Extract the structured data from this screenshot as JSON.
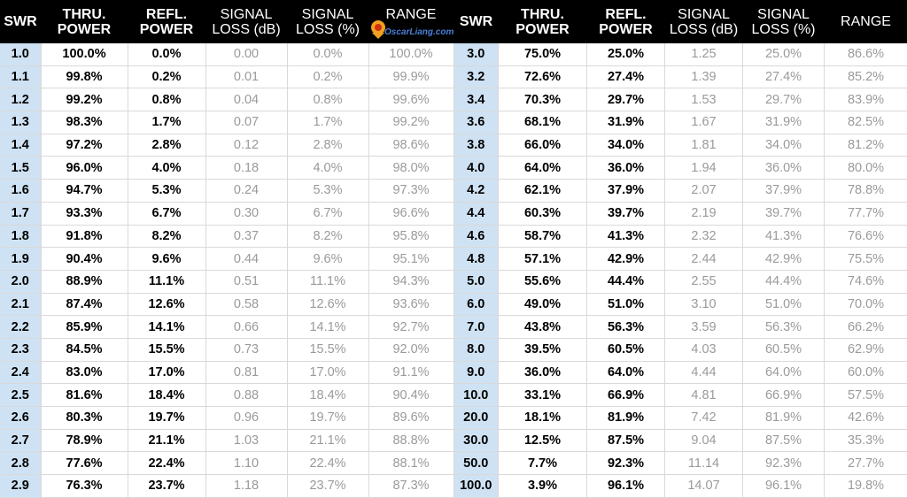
{
  "headers": {
    "swr": "SWR",
    "thru_1": "THRU.",
    "thru_2": "POWER",
    "refl_1": "REFL.",
    "refl_2": "POWER",
    "sigdb_1": "SIGNAL",
    "sigdb_2": "LOSS (dB)",
    "sigpct_1": "SIGNAL",
    "sigpct_2": "LOSS (%)",
    "range": "RANGE"
  },
  "logo_text": "OscarLiang.com",
  "left_rows": [
    [
      "1.0",
      "100.0%",
      "0.0%",
      "0.00",
      "0.0%",
      "100.0%"
    ],
    [
      "1.1",
      "99.8%",
      "0.2%",
      "0.01",
      "0.2%",
      "99.9%"
    ],
    [
      "1.2",
      "99.2%",
      "0.8%",
      "0.04",
      "0.8%",
      "99.6%"
    ],
    [
      "1.3",
      "98.3%",
      "1.7%",
      "0.07",
      "1.7%",
      "99.2%"
    ],
    [
      "1.4",
      "97.2%",
      "2.8%",
      "0.12",
      "2.8%",
      "98.6%"
    ],
    [
      "1.5",
      "96.0%",
      "4.0%",
      "0.18",
      "4.0%",
      "98.0%"
    ],
    [
      "1.6",
      "94.7%",
      "5.3%",
      "0.24",
      "5.3%",
      "97.3%"
    ],
    [
      "1.7",
      "93.3%",
      "6.7%",
      "0.30",
      "6.7%",
      "96.6%"
    ],
    [
      "1.8",
      "91.8%",
      "8.2%",
      "0.37",
      "8.2%",
      "95.8%"
    ],
    [
      "1.9",
      "90.4%",
      "9.6%",
      "0.44",
      "9.6%",
      "95.1%"
    ],
    [
      "2.0",
      "88.9%",
      "11.1%",
      "0.51",
      "11.1%",
      "94.3%"
    ],
    [
      "2.1",
      "87.4%",
      "12.6%",
      "0.58",
      "12.6%",
      "93.6%"
    ],
    [
      "2.2",
      "85.9%",
      "14.1%",
      "0.66",
      "14.1%",
      "92.7%"
    ],
    [
      "2.3",
      "84.5%",
      "15.5%",
      "0.73",
      "15.5%",
      "92.0%"
    ],
    [
      "2.4",
      "83.0%",
      "17.0%",
      "0.81",
      "17.0%",
      "91.1%"
    ],
    [
      "2.5",
      "81.6%",
      "18.4%",
      "0.88",
      "18.4%",
      "90.4%"
    ],
    [
      "2.6",
      "80.3%",
      "19.7%",
      "0.96",
      "19.7%",
      "89.6%"
    ],
    [
      "2.7",
      "78.9%",
      "21.1%",
      "1.03",
      "21.1%",
      "88.8%"
    ],
    [
      "2.8",
      "77.6%",
      "22.4%",
      "1.10",
      "22.4%",
      "88.1%"
    ],
    [
      "2.9",
      "76.3%",
      "23.7%",
      "1.18",
      "23.7%",
      "87.3%"
    ]
  ],
  "right_rows": [
    [
      "3.0",
      "75.0%",
      "25.0%",
      "1.25",
      "25.0%",
      "86.6%"
    ],
    [
      "3.2",
      "72.6%",
      "27.4%",
      "1.39",
      "27.4%",
      "85.2%"
    ],
    [
      "3.4",
      "70.3%",
      "29.7%",
      "1.53",
      "29.7%",
      "83.9%"
    ],
    [
      "3.6",
      "68.1%",
      "31.9%",
      "1.67",
      "31.9%",
      "82.5%"
    ],
    [
      "3.8",
      "66.0%",
      "34.0%",
      "1.81",
      "34.0%",
      "81.2%"
    ],
    [
      "4.0",
      "64.0%",
      "36.0%",
      "1.94",
      "36.0%",
      "80.0%"
    ],
    [
      "4.2",
      "62.1%",
      "37.9%",
      "2.07",
      "37.9%",
      "78.8%"
    ],
    [
      "4.4",
      "60.3%",
      "39.7%",
      "2.19",
      "39.7%",
      "77.7%"
    ],
    [
      "4.6",
      "58.7%",
      "41.3%",
      "2.32",
      "41.3%",
      "76.6%"
    ],
    [
      "4.8",
      "57.1%",
      "42.9%",
      "2.44",
      "42.9%",
      "75.5%"
    ],
    [
      "5.0",
      "55.6%",
      "44.4%",
      "2.55",
      "44.4%",
      "74.6%"
    ],
    [
      "6.0",
      "49.0%",
      "51.0%",
      "3.10",
      "51.0%",
      "70.0%"
    ],
    [
      "7.0",
      "43.8%",
      "56.3%",
      "3.59",
      "56.3%",
      "66.2%"
    ],
    [
      "8.0",
      "39.5%",
      "60.5%",
      "4.03",
      "60.5%",
      "62.9%"
    ],
    [
      "9.0",
      "36.0%",
      "64.0%",
      "4.44",
      "64.0%",
      "60.0%"
    ],
    [
      "10.0",
      "33.1%",
      "66.9%",
      "4.81",
      "66.9%",
      "57.5%"
    ],
    [
      "20.0",
      "18.1%",
      "81.9%",
      "7.42",
      "81.9%",
      "42.6%"
    ],
    [
      "30.0",
      "12.5%",
      "87.5%",
      "9.04",
      "87.5%",
      "35.3%"
    ],
    [
      "50.0",
      "7.7%",
      "92.3%",
      "11.14",
      "92.3%",
      "27.7%"
    ],
    [
      "100.0",
      "3.9%",
      "96.1%",
      "14.07",
      "96.1%",
      "19.8%"
    ]
  ]
}
